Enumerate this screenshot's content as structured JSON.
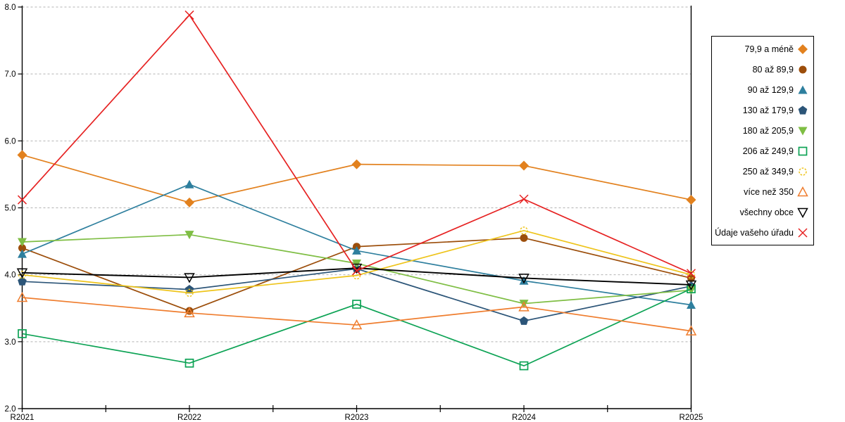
{
  "chart_data": {
    "type": "line",
    "title": "",
    "xlabel": "",
    "ylabel": "",
    "x_labels": [
      "R2021",
      "R2022",
      "R2023",
      "R2024",
      "R2025"
    ],
    "ylim": [
      2.0,
      8.0
    ],
    "y_ticks": [
      "8.0",
      "7.0",
      "6.0",
      "5.0",
      "4.0",
      "3.0",
      "2.0"
    ],
    "grid": "horizontal-dotted",
    "grid_color": "#b3b3b3",
    "axis_color": "#000000",
    "legend_position": "right",
    "series": [
      {
        "name": "79,9 a méně",
        "color": "#e2811e",
        "marker": "diamond",
        "fill": "solid",
        "values": [
          5.79,
          5.08,
          5.65,
          5.63,
          5.12
        ]
      },
      {
        "name": "80 až 89,9",
        "color": "#9c4e0b",
        "marker": "circle",
        "fill": "solid",
        "values": [
          4.4,
          3.46,
          4.42,
          4.55,
          3.95
        ]
      },
      {
        "name": "90 až 129,9",
        "color": "#2e7f9e",
        "marker": "triangle-up",
        "fill": "solid",
        "values": [
          4.31,
          5.35,
          4.36,
          3.91,
          3.55
        ]
      },
      {
        "name": "130 až 179,9",
        "color": "#2c5578",
        "marker": "pentagon",
        "fill": "solid",
        "values": [
          3.9,
          3.78,
          4.09,
          3.31,
          3.83
        ]
      },
      {
        "name": "180 až 205,9",
        "color": "#7fbe44",
        "marker": "triangle-down",
        "fill": "solid",
        "values": [
          4.49,
          4.6,
          4.17,
          3.57,
          3.77
        ]
      },
      {
        "name": "206 až 249,9",
        "color": "#0da355",
        "marker": "square",
        "fill": "open",
        "values": [
          3.12,
          2.68,
          3.56,
          2.64,
          3.79
        ]
      },
      {
        "name": "250 až 349,9",
        "color": "#eec41b",
        "marker": "circle-dashed",
        "fill": "open",
        "values": [
          4.0,
          3.73,
          3.99,
          4.66,
          4.0
        ]
      },
      {
        "name": "více než 350",
        "color": "#ef7d2e",
        "marker": "triangle-up",
        "fill": "open",
        "values": [
          3.66,
          3.43,
          3.25,
          3.52,
          3.16
        ]
      },
      {
        "name": "všechny obce",
        "color": "#000000",
        "marker": "triangle-down",
        "fill": "open",
        "values": [
          4.03,
          3.96,
          4.1,
          3.95,
          3.85
        ]
      },
      {
        "name": "Údaje vašeho úřadu",
        "color": "#e62222",
        "marker": "x",
        "fill": "open",
        "values": [
          5.12,
          7.88,
          4.06,
          5.13,
          4.02
        ]
      }
    ]
  }
}
